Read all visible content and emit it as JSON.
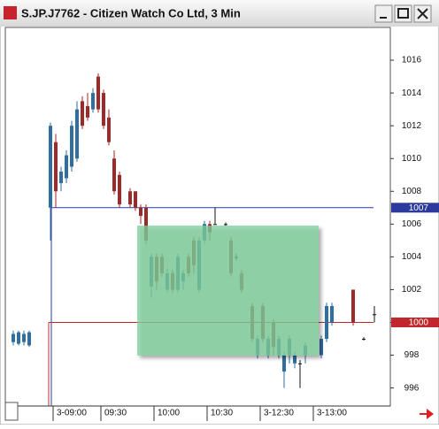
{
  "chart_data": {
    "type": "candlestick",
    "title": "S.JP.J7762 - Citizen Watch Co Ltd, 3 Min",
    "categories": [
      null,
      null,
      null,
      null,
      null,
      null,
      null,
      null,
      "3-09:00",
      null,
      null,
      null,
      null,
      null,
      null,
      null,
      null,
      "09:30",
      null,
      null,
      null,
      null,
      null,
      null,
      null,
      null,
      null,
      "10:00",
      null,
      null,
      null,
      null,
      null,
      null,
      null,
      null,
      null,
      "10:30",
      null,
      null,
      null,
      null,
      null,
      null,
      null,
      null,
      null,
      "3-12:30",
      null,
      null,
      null,
      null,
      null,
      null,
      null,
      null,
      null,
      "3-13:00",
      null,
      null,
      null,
      null,
      null,
      null,
      null,
      null,
      null,
      null,
      null
    ],
    "open": [
      998.8,
      998.7,
      998.8,
      998.6,
      null,
      null,
      null,
      1007,
      1011,
      1008.5,
      1008.8,
      1009.5,
      1010,
      1013.5,
      1013.2,
      1013,
      1015,
      1014,
      1012.5,
      1010,
      1009,
      null,
      1008,
      1008,
      1007,
      1007,
      1002.2,
      1004,
      1004,
      1002,
      1003,
      1002,
      1002.5,
      1004,
      1005,
      1002,
      1005,
      1006,
      1006,
      null,
      1006,
      1005,
      1004,
      1003,
      null,
      1001,
      998,
      1001,
      998,
      1000,
      998,
      997,
      998,
      997.5,
      997.5,
      998,
      null,
      null,
      998,
      999,
      1000,
      null,
      null,
      null,
      1002,
      null,
      999,
      null,
      1000.5
    ],
    "high": [
      999.5,
      999.5,
      999.5,
      999.5,
      null,
      null,
      null,
      1012.2,
      1011.5,
      1009.5,
      1010.5,
      1012.3,
      1013.5,
      1013.8,
      1014,
      1014.3,
      1015.2,
      1014.2,
      1013,
      1010.5,
      1009.2,
      null,
      1008.2,
      1008,
      1007.2,
      1007.2,
      1004.2,
      1004.2,
      1004.2,
      1003.3,
      1003.2,
      1004.2,
      1003.2,
      1004.2,
      1005.2,
      1005.2,
      1006.2,
      1006.2,
      1007,
      null,
      1006.1,
      1005.2,
      1004.2,
      1003.2,
      null,
      1001.2,
      999.2,
      1001.2,
      999.2,
      1000.2,
      999.2,
      998.2,
      999.2,
      998.2,
      997.7,
      998.8,
      null,
      null,
      999.2,
      1001.2,
      1001.2,
      null,
      null,
      null,
      1002,
      null,
      999.1,
      null,
      1001
    ],
    "low": [
      998.6,
      998.6,
      998.6,
      998.5,
      null,
      null,
      null,
      1005,
      1007,
      1008,
      1008.5,
      1009.2,
      1009.8,
      1011.8,
      1012.3,
      1012.8,
      1012.8,
      1011.8,
      1010.8,
      1007.8,
      1007,
      null,
      1007,
      1006.8,
      1006,
      1004.8,
      1001.5,
      1002,
      1002.8,
      1001.8,
      1001.8,
      1001.8,
      1002,
      1002.8,
      1003,
      1001.8,
      1004.8,
      1005,
      1006,
      null,
      1005.9,
      1002.8,
      1003.8,
      1001.8,
      null,
      998.8,
      997.8,
      998.8,
      997.8,
      998,
      997.8,
      996,
      997.5,
      997.2,
      996,
      997.5,
      null,
      null,
      997.8,
      998.8,
      999.8,
      null,
      null,
      null,
      999.8,
      null,
      998.9,
      null,
      1000
    ],
    "close": [
      999.3,
      999.4,
      999.3,
      999.4,
      null,
      null,
      null,
      1012,
      1008,
      1009.2,
      1010.2,
      1012,
      1013,
      1012,
      1012.5,
      1014,
      1013,
      1012,
      1011,
      1008,
      1007.2,
      null,
      1007.2,
      1007,
      1006.5,
      1005,
      1004,
      1002.5,
      1003,
      1003,
      1002,
      1004,
      1003,
      1003,
      1003.5,
      1005,
      1006,
      1005.5,
      1006,
      null,
      1006,
      1003,
      1004,
      1002,
      null,
      999,
      999,
      999,
      999,
      998.5,
      999,
      998,
      999,
      998,
      997.5,
      998.6,
      null,
      null,
      999,
      1001,
      1001,
      null,
      null,
      null,
      1000,
      null,
      999,
      null,
      1000.5
    ],
    "up_color": "#2f6e9e",
    "down_color": "#9c2a2a",
    "ylim": [
      994.9,
      1018
    ],
    "yticks": [
      996,
      998,
      1000,
      1002,
      1004,
      1006,
      1008,
      1010,
      1012,
      1014,
      1016
    ],
    "lines": [
      {
        "value": 1007,
        "color": "#2b3a9c"
      },
      {
        "value": 1000,
        "color": "#c0282d"
      }
    ]
  }
}
